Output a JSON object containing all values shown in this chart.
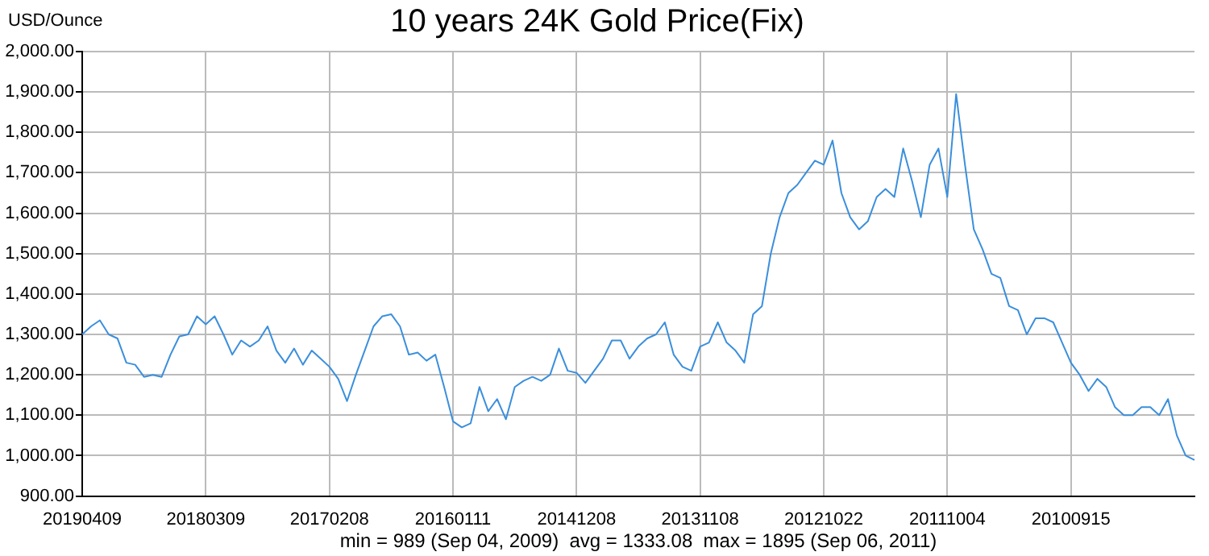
{
  "chart_data": {
    "type": "line",
    "title": "10 years 24K Gold Price(Fix)",
    "ylabel": "USD/Ounce",
    "categories": [
      "20190409",
      null,
      null,
      null,
      null,
      null,
      null,
      null,
      null,
      null,
      null,
      null,
      null,
      null,
      "20180309",
      null,
      null,
      null,
      null,
      null,
      null,
      null,
      null,
      null,
      null,
      null,
      null,
      null,
      "20170208",
      null,
      null,
      null,
      null,
      null,
      null,
      null,
      null,
      null,
      null,
      null,
      null,
      null,
      "20160111",
      null,
      null,
      null,
      null,
      null,
      null,
      null,
      null,
      null,
      null,
      null,
      null,
      null,
      "20141208",
      null,
      null,
      null,
      null,
      null,
      null,
      null,
      null,
      null,
      null,
      null,
      null,
      null,
      "20131108",
      null,
      null,
      null,
      null,
      null,
      null,
      null,
      null,
      null,
      null,
      null,
      null,
      null,
      "20121022",
      null,
      null,
      null,
      null,
      null,
      null,
      null,
      null,
      null,
      null,
      null,
      null,
      null,
      "20111004",
      null,
      null,
      null,
      null,
      null,
      null,
      null,
      null,
      null,
      null,
      null,
      null,
      null,
      "20100915",
      null,
      null,
      null,
      null,
      null,
      null,
      null,
      null,
      null,
      null,
      null,
      null,
      null,
      null
    ],
    "series": [
      {
        "color": "#3b8fdc",
        "values": [
          1300,
          1320,
          1335,
          1300,
          1290,
          1230,
          1225,
          1195,
          1200,
          1195,
          1250,
          1295,
          1300,
          1345,
          1325,
          1345,
          1300,
          1250,
          1285,
          1270,
          1285,
          1320,
          1260,
          1230,
          1265,
          1225,
          1260,
          1240,
          1220,
          1190,
          1135,
          1200,
          1260,
          1320,
          1345,
          1350,
          1320,
          1250,
          1255,
          1235,
          1250,
          1170,
          1085,
          1070,
          1080,
          1170,
          1110,
          1140,
          1090,
          1170,
          1185,
          1195,
          1185,
          1200,
          1265,
          1210,
          1205,
          1180,
          1210,
          1240,
          1285,
          1285,
          1240,
          1270,
          1290,
          1300,
          1330,
          1250,
          1220,
          1210,
          1270,
          1280,
          1330,
          1280,
          1260,
          1230,
          1350,
          1370,
          1500,
          1590,
          1650,
          1670,
          1700,
          1730,
          1720,
          1780,
          1650,
          1590,
          1560,
          1580,
          1640,
          1660,
          1640,
          1760,
          1680,
          1590,
          1720,
          1760,
          1640,
          1895,
          1720,
          1560,
          1510,
          1450,
          1440,
          1370,
          1360,
          1300,
          1340,
          1340,
          1330,
          1280,
          1230,
          1200,
          1160,
          1190,
          1170,
          1120,
          1100,
          1100,
          1120,
          1120,
          1100,
          1140,
          1050,
          1000,
          989
        ]
      }
    ],
    "ylim": [
      900,
      2000
    ],
    "yticks": [
      {
        "value": 900,
        "label": "900.00"
      },
      {
        "value": 1000,
        "label": "1,000.00"
      },
      {
        "value": 1100,
        "label": "1,100.00"
      },
      {
        "value": 1200,
        "label": "1,200.00"
      },
      {
        "value": 1300,
        "label": "1,300.00"
      },
      {
        "value": 1400,
        "label": "1,400.00"
      },
      {
        "value": 1500,
        "label": "1,500.00"
      },
      {
        "value": 1600,
        "label": "1,600.00"
      },
      {
        "value": 1700,
        "label": "1,700.00"
      },
      {
        "value": 1800,
        "label": "1,800.00"
      },
      {
        "value": 1900,
        "label": "1,900.00"
      },
      {
        "value": 2000,
        "label": "2,000.00"
      }
    ],
    "grid": true,
    "marker": "none",
    "annotations": [
      "min = 989 (Sep 04, 2009)  avg = 1333.08  max = 1895 (Sep 06, 2011)"
    ]
  }
}
